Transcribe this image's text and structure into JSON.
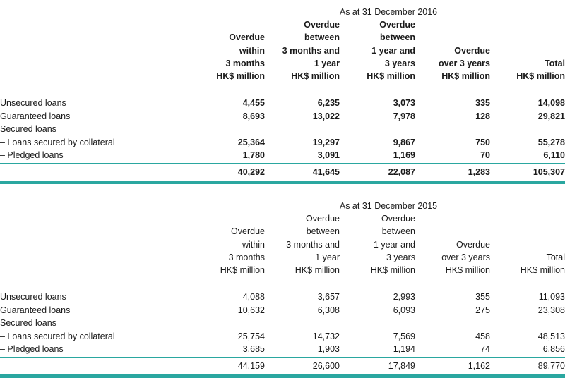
{
  "tables": [
    {
      "period": "As at 31 December 2016",
      "bold": true,
      "columns": [
        [
          "Overdue",
          "within",
          "3 months",
          "HK$ million"
        ],
        [
          "Overdue",
          "between",
          "3 months and",
          "1 year",
          "HK$ million"
        ],
        [
          "Overdue",
          "between",
          "1 year and",
          "3 years",
          "HK$ million"
        ],
        [
          "Overdue",
          "over 3 years",
          "HK$ million"
        ],
        [
          "Total",
          "HK$ million"
        ]
      ],
      "rows": [
        {
          "label": "Unsecured loans",
          "values": [
            "4,455",
            "6,235",
            "3,073",
            "335",
            "14,098"
          ]
        },
        {
          "label": "Guaranteed loans",
          "values": [
            "8,693",
            "13,022",
            "7,978",
            "128",
            "29,821"
          ]
        },
        {
          "label": "Secured loans",
          "values": []
        },
        {
          "label": "– Loans secured by collateral",
          "values": [
            "25,364",
            "19,297",
            "9,867",
            "750",
            "55,278"
          ]
        },
        {
          "label": "– Pledged loans",
          "values": [
            "1,780",
            "3,091",
            "1,169",
            "70",
            "6,110"
          ]
        }
      ],
      "totals": [
        "40,292",
        "41,645",
        "22,087",
        "1,283",
        "105,307"
      ]
    },
    {
      "period": "As at 31 December 2015",
      "bold": false,
      "columns": [
        [
          "Overdue",
          "within",
          "3 months",
          "HK$ million"
        ],
        [
          "Overdue",
          "between",
          "3 months and",
          "1 year",
          "HK$ million"
        ],
        [
          "Overdue",
          "between",
          "1 year and",
          "3 years",
          "HK$ million"
        ],
        [
          "Overdue",
          "over 3 years",
          "HK$ million"
        ],
        [
          "Total",
          "HK$ million"
        ]
      ],
      "rows": [
        {
          "label": "Unsecured loans",
          "values": [
            "4,088",
            "3,657",
            "2,993",
            "355",
            "11,093"
          ]
        },
        {
          "label": "Guaranteed loans",
          "values": [
            "10,632",
            "6,308",
            "6,093",
            "275",
            "23,308"
          ]
        },
        {
          "label": "Secured loans",
          "values": []
        },
        {
          "label": "– Loans secured by collateral",
          "values": [
            "25,754",
            "14,732",
            "7,569",
            "458",
            "48,513"
          ]
        },
        {
          "label": "– Pledged loans",
          "values": [
            "3,685",
            "1,903",
            "1,194",
            "74",
            "6,856"
          ]
        }
      ],
      "totals": [
        "44,159",
        "26,600",
        "17,849",
        "1,162",
        "89,770"
      ]
    }
  ],
  "colors": {
    "rule": "#2aa7a0",
    "thin_rule": "#6bc6c0",
    "text": "#1a1a1a"
  }
}
